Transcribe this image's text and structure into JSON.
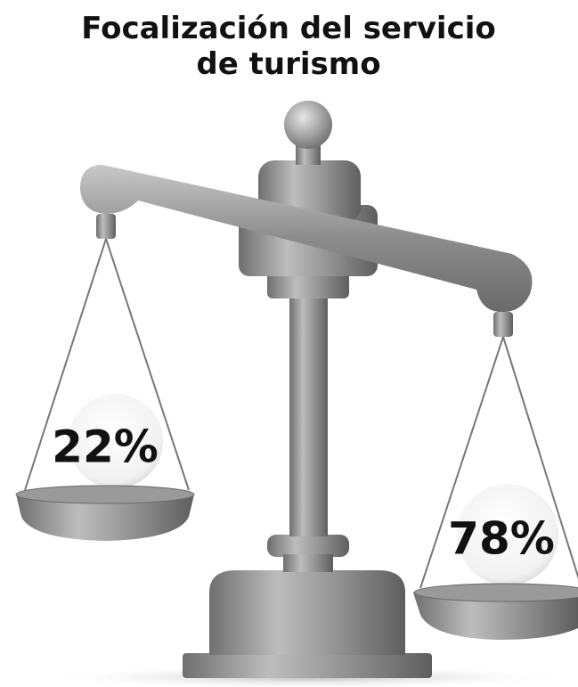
{
  "title": "Focalización del servicio de turismo",
  "pans": [
    {
      "label": "22%"
    },
    {
      "label": "78%"
    }
  ]
}
